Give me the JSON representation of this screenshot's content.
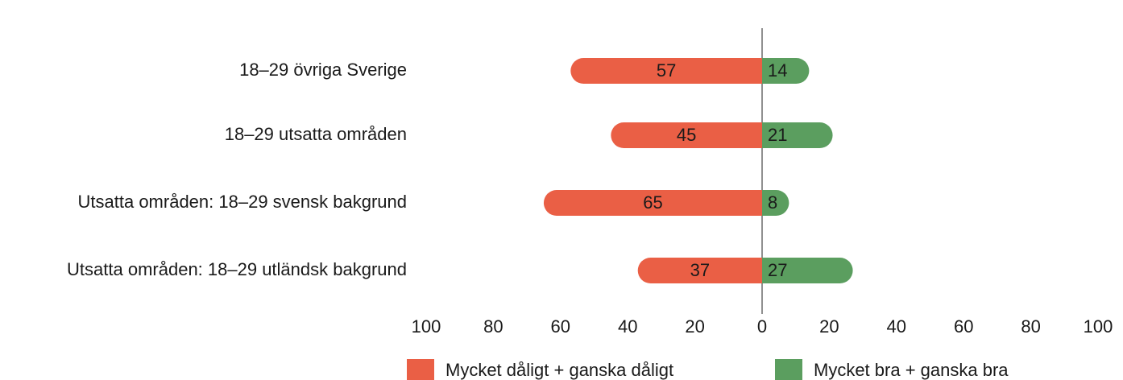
{
  "chart_data": {
    "type": "diverging_bar",
    "categories": [
      "18–29 övriga Sverige",
      "18–29 utsatta områden",
      "Utsatta områden: 18–29 svensk bakgrund",
      "Utsatta områden: 18–29 utländsk bakgrund"
    ],
    "series": [
      {
        "name": "Mycket dåligt + ganska dåligt",
        "color": "#ea5f45",
        "values": [
          -57,
          -45,
          -65,
          -37
        ],
        "value_labels": [
          "57",
          "45",
          "65",
          "37"
        ]
      },
      {
        "name": "Mycket bra + ganska bra",
        "color": "#5b9e5f",
        "values": [
          14,
          21,
          8,
          27
        ]
      }
    ],
    "xlim": [
      -100,
      100
    ],
    "xticks": [
      {
        "value": -100,
        "label": "100"
      },
      {
        "value": -80,
        "label": "80"
      },
      {
        "value": -60,
        "label": "60"
      },
      {
        "value": -40,
        "label": "40"
      },
      {
        "value": -20,
        "label": "20"
      },
      0,
      20,
      40,
      60,
      80,
      100
    ],
    "legend": "bottom"
  }
}
